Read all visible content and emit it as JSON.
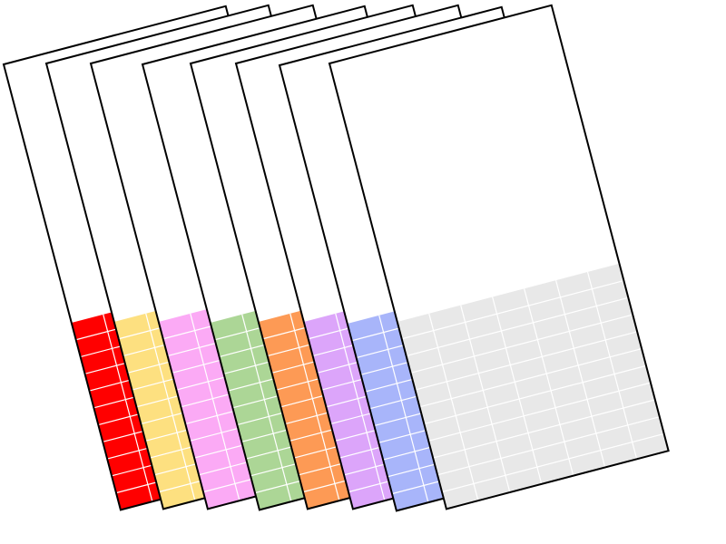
{
  "cards": [
    {
      "name": "red",
      "color": "#ff0000"
    },
    {
      "name": "yellow",
      "color": "#fde080"
    },
    {
      "name": "pink",
      "color": "#fbaaf5"
    },
    {
      "name": "green",
      "color": "#acd696"
    },
    {
      "name": "orange",
      "color": "#fd9a55"
    },
    {
      "name": "purple",
      "color": "#dca5fa"
    },
    {
      "name": "blue",
      "color": "#a8b5fa"
    },
    {
      "name": "grey",
      "color": "#e8e8e8"
    }
  ],
  "grid": {
    "columns": 7,
    "rows": 11,
    "line_color": "#ffffff"
  },
  "colored_fraction": 0.42,
  "card_color": "#ffffff",
  "border_color": "#000000"
}
